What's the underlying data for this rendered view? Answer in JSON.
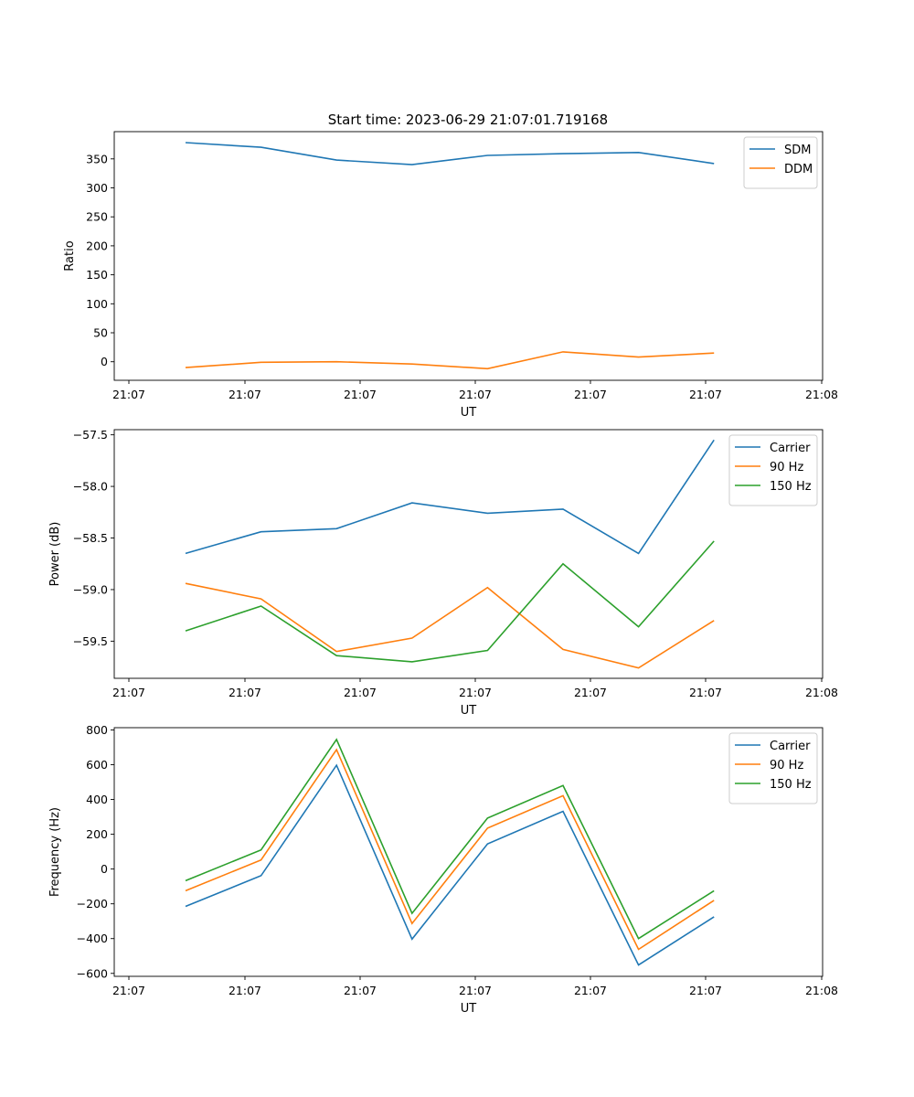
{
  "title": "Start time: 2023-06-29 21:07:01.719168",
  "chart_data": [
    {
      "type": "line",
      "xlabel": "UT",
      "ylabel": "Ratio",
      "x": [
        "21:07:01.719",
        "21:07:01.800",
        "21:07:01.880",
        "21:07:01.960",
        "21:07:02.040",
        "21:07:02.120",
        "21:07:02.200",
        "21:07:02.280"
      ],
      "xtick_labels": [
        "21:07",
        "21:07",
        "21:07",
        "21:07",
        "21:07",
        "21:07",
        "21:08"
      ],
      "ylim": [
        -32,
        397
      ],
      "yticks": [
        0,
        50,
        100,
        150,
        200,
        250,
        300,
        350
      ],
      "legend_position": "top-right",
      "series": [
        {
          "name": "SDM",
          "color": "#1f77b4",
          "values": [
            378,
            370,
            348,
            340,
            356,
            359,
            361,
            342
          ]
        },
        {
          "name": "DDM",
          "color": "#ff7f0e",
          "values": [
            -10,
            -1,
            0,
            -4,
            -12,
            17,
            8,
            15
          ]
        }
      ]
    },
    {
      "type": "line",
      "xlabel": "UT",
      "ylabel": "Power (dB)",
      "x": [
        "21:07:01.719",
        "21:07:01.800",
        "21:07:01.880",
        "21:07:01.960",
        "21:07:02.040",
        "21:07:02.120",
        "21:07:02.200",
        "21:07:02.280"
      ],
      "xtick_labels": [
        "21:07",
        "21:07",
        "21:07",
        "21:07",
        "21:07",
        "21:07",
        "21:08"
      ],
      "ylim": [
        -59.86,
        -57.45
      ],
      "yticks": [
        -59.5,
        -59.0,
        -58.5,
        -58.0,
        -57.5
      ],
      "ytick_labels": [
        "−59.5",
        "−59.0",
        "−58.5",
        "−58.0",
        "−57.5"
      ],
      "legend_position": "top-right",
      "series": [
        {
          "name": "Carrier",
          "color": "#1f77b4",
          "values": [
            -58.65,
            -58.44,
            -58.41,
            -58.16,
            -58.26,
            -58.22,
            -58.65,
            -57.55
          ]
        },
        {
          "name": "90 Hz",
          "color": "#ff7f0e",
          "values": [
            -58.94,
            -59.09,
            -59.6,
            -59.47,
            -58.98,
            -59.58,
            -59.76,
            -59.3
          ]
        },
        {
          "name": "150 Hz",
          "color": "#2ca02c",
          "values": [
            -59.4,
            -59.16,
            -59.64,
            -59.7,
            -59.59,
            -58.75,
            -59.36,
            -58.53
          ]
        }
      ]
    },
    {
      "type": "line",
      "xlabel": "UT",
      "ylabel": "Frequency (Hz)",
      "x": [
        "21:07:01.719",
        "21:07:01.800",
        "21:07:01.880",
        "21:07:01.960",
        "21:07:02.040",
        "21:07:02.120",
        "21:07:02.200",
        "21:07:02.280"
      ],
      "xtick_labels": [
        "21:07",
        "21:07",
        "21:07",
        "21:07",
        "21:07",
        "21:07",
        "21:08"
      ],
      "ylim": [
        -617,
        813
      ],
      "yticks": [
        -600,
        -400,
        -200,
        0,
        200,
        400,
        600,
        800
      ],
      "ytick_labels": [
        "−600",
        "−400",
        "−200",
        "0",
        "200",
        "400",
        "600",
        "800"
      ],
      "legend_position": "top-right",
      "series": [
        {
          "name": "Carrier",
          "color": "#1f77b4",
          "values": [
            -215,
            -38,
            597,
            -403,
            145,
            332,
            -552,
            -275
          ]
        },
        {
          "name": "90 Hz",
          "color": "#ff7f0e",
          "values": [
            -125,
            52,
            687,
            -313,
            235,
            422,
            -462,
            -180
          ]
        },
        {
          "name": "150 Hz",
          "color": "#2ca02c",
          "values": [
            -67,
            110,
            745,
            -255,
            293,
            480,
            -400,
            -125
          ]
        }
      ]
    }
  ]
}
